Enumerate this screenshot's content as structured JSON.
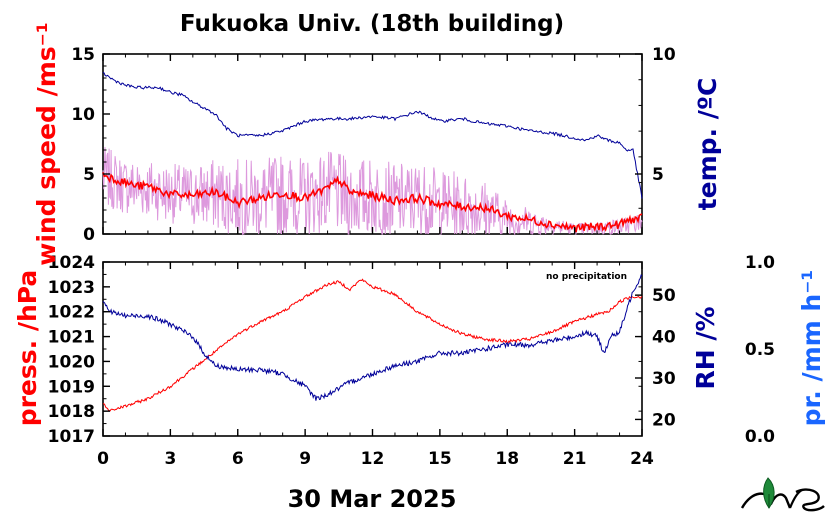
{
  "title": "Fukuoka Univ. (18th building)",
  "date_label": "30 Mar 2025",
  "note": "no precipitation",
  "colors": {
    "wind_raw": "#dd99dd",
    "wind_avg": "#ff0000",
    "temp": "#000099",
    "pressure": "#ff0000",
    "rh": "#000099",
    "precip_axis": "#1a66ff"
  },
  "chart_data": [
    {
      "type": "line",
      "panel": "top",
      "title": "Fukuoka Univ. (18th building)",
      "xlim": [
        0,
        24
      ],
      "x_ticks": [
        "0",
        "3",
        "6",
        "9",
        "12",
        "15",
        "18",
        "21",
        "24"
      ],
      "left_axis": {
        "label": "wind speed /ms⁻¹",
        "ylim": [
          0,
          15
        ],
        "ticks": [
          "0",
          "5",
          "10",
          "15"
        ]
      },
      "right_axis": {
        "label": "temp. /ºC",
        "ylim": [
          2.5,
          10
        ],
        "ticks": [
          "5",
          "10"
        ]
      },
      "series": [
        {
          "axis": "left",
          "role": "raw",
          "x": [
            0,
            1,
            2,
            3,
            4,
            5,
            6,
            7,
            8,
            9,
            10,
            11,
            12,
            13,
            14,
            15,
            16,
            17,
            18,
            19,
            20,
            21,
            22,
            23,
            24
          ],
          "y": [
            4.8,
            4.0,
            3.8,
            3.4,
            3.2,
            3.3,
            3.0,
            2.9,
            3.3,
            3.0,
            3.6,
            3.0,
            3.1,
            2.7,
            2.9,
            2.5,
            2.3,
            2.0,
            1.3,
            1.0,
            0.7,
            0.4,
            0.5,
            0.6,
            1.0
          ],
          "amp": [
            2.6,
            2.4,
            2.5,
            2.5,
            2.6,
            3.0,
            3.3,
            3.3,
            3.5,
            3.3,
            3.4,
            3.4,
            3.3,
            3.2,
            3.2,
            3.0,
            2.8,
            2.6,
            1.6,
            1.2,
            0.8,
            0.5,
            0.6,
            0.7,
            0.8
          ]
        },
        {
          "axis": "left",
          "role": "average",
          "x": [
            0,
            0.5,
            1,
            1.5,
            2,
            3,
            4,
            5,
            6,
            7,
            8,
            9,
            10,
            10.5,
            11,
            12,
            13,
            14,
            15,
            16,
            17,
            18,
            19,
            20,
            21,
            22,
            23,
            23.5,
            24
          ],
          "y": [
            5.0,
            4.6,
            4.3,
            4.0,
            4.0,
            3.3,
            3.2,
            3.5,
            2.6,
            3.0,
            3.4,
            3.0,
            3.8,
            4.5,
            3.5,
            3.2,
            2.8,
            3.0,
            2.5,
            2.3,
            2.2,
            1.5,
            1.2,
            0.8,
            0.5,
            0.6,
            0.8,
            1.2,
            1.3
          ]
        },
        {
          "axis": "right",
          "role": "temperature",
          "x": [
            0,
            0.5,
            1,
            1.5,
            2,
            2.5,
            3,
            3.5,
            4,
            5,
            5.5,
            6,
            7,
            8,
            8.5,
            9,
            10,
            11,
            12,
            13,
            14,
            15,
            16,
            17,
            18,
            19,
            20,
            21,
            21.5,
            22,
            22.5,
            23,
            23.3,
            23.6,
            24
          ],
          "y": [
            9.2,
            8.9,
            8.7,
            8.6,
            8.6,
            8.6,
            8.4,
            8.3,
            8.0,
            7.5,
            6.9,
            6.6,
            6.6,
            6.8,
            7.0,
            7.2,
            7.3,
            7.3,
            7.4,
            7.3,
            7.6,
            7.2,
            7.3,
            7.1,
            7.0,
            6.8,
            6.7,
            6.5,
            6.4,
            6.6,
            6.4,
            6.3,
            6.0,
            6.0,
            4.0
          ]
        }
      ]
    },
    {
      "type": "line",
      "panel": "bottom",
      "xlim": [
        0,
        24
      ],
      "x_ticks": [
        "0",
        "3",
        "6",
        "9",
        "12",
        "15",
        "18",
        "21",
        "24"
      ],
      "xlabel": "30 Mar 2025",
      "left_axis": {
        "label": "press. /hPa",
        "ylim": [
          1017,
          1024
        ],
        "ticks": [
          "1017",
          "1018",
          "1019",
          "1020",
          "1021",
          "1022",
          "1023",
          "1024"
        ]
      },
      "right_axis": {
        "label": "RH /%",
        "ylim": [
          16,
          58
        ],
        "ticks": [
          "20",
          "30",
          "40",
          "50"
        ]
      },
      "precip_axis": {
        "label": "pr. /mm h⁻¹",
        "ylim": [
          0,
          1.0
        ],
        "ticks": [
          "0.0",
          "0.5",
          "1.0"
        ]
      },
      "series": [
        {
          "axis": "left",
          "role": "pressure",
          "x": [
            0,
            0.3,
            0.6,
            1,
            2,
            3,
            4,
            5,
            6,
            7,
            8,
            9,
            10,
            10.5,
            11,
            11.5,
            12,
            13,
            14,
            15,
            16,
            17,
            18,
            19,
            20,
            21,
            22,
            22.5,
            23,
            23.5,
            24
          ],
          "y": [
            1018.3,
            1018.0,
            1018.1,
            1018.2,
            1018.5,
            1019.0,
            1019.7,
            1020.4,
            1021.1,
            1021.6,
            1022.0,
            1022.6,
            1023.1,
            1023.2,
            1022.9,
            1023.3,
            1023.0,
            1022.7,
            1022.0,
            1021.5,
            1021.1,
            1020.9,
            1020.8,
            1020.9,
            1021.2,
            1021.6,
            1021.9,
            1022.0,
            1022.4,
            1022.6,
            1022.6
          ]
        },
        {
          "axis": "right",
          "role": "humidity",
          "x": [
            0,
            0.3,
            1,
            2,
            3,
            4,
            4.5,
            5,
            6,
            7,
            8,
            9,
            9.5,
            10,
            11,
            12,
            13,
            14,
            15,
            16,
            17,
            18,
            19,
            20,
            21,
            21.5,
            22,
            22.3,
            22.6,
            23,
            23.3,
            23.6,
            24
          ],
          "y": [
            49,
            46,
            45,
            45,
            43,
            40,
            36,
            33,
            32,
            32,
            31,
            28,
            25,
            26,
            29,
            31,
            33,
            34,
            36,
            36,
            37,
            38,
            38,
            39,
            40,
            41,
            40,
            36,
            40,
            41,
            46,
            51,
            55
          ]
        }
      ]
    }
  ]
}
